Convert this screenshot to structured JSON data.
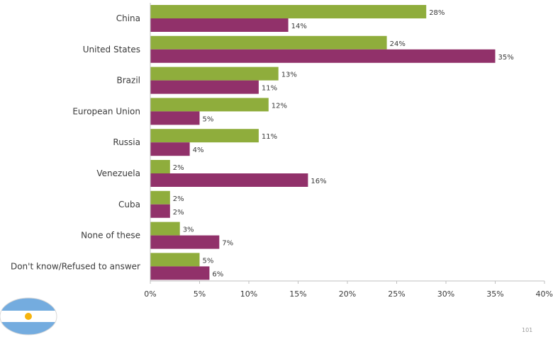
{
  "chart_data": {
    "type": "bar",
    "orientation": "horizontal",
    "categories": [
      "China",
      "United States",
      "Brazil",
      "European Union",
      "Russia",
      "Venezuela",
      "Cuba",
      "None of these",
      "Don't know/Refused to answer"
    ],
    "series": [
      {
        "color": "#8fad3c",
        "values": [
          28,
          24,
          13,
          12,
          11,
          2,
          2,
          3,
          5
        ]
      },
      {
        "color": "#91316a",
        "values": [
          14,
          35,
          11,
          5,
          4,
          16,
          2,
          7,
          6
        ]
      }
    ],
    "xlim": [
      0,
      40
    ],
    "x_ticks": [
      "0%",
      "5%",
      "10%",
      "15%",
      "20%",
      "25%",
      "30%",
      "35%",
      "40%"
    ],
    "value_suffix": "%",
    "grid": false,
    "legend": "none"
  },
  "flag": {
    "icon": "argentina-flag-icon",
    "colors": [
      "#74acdf",
      "#ffffff",
      "#f6b40e"
    ]
  },
  "page_number": "101"
}
